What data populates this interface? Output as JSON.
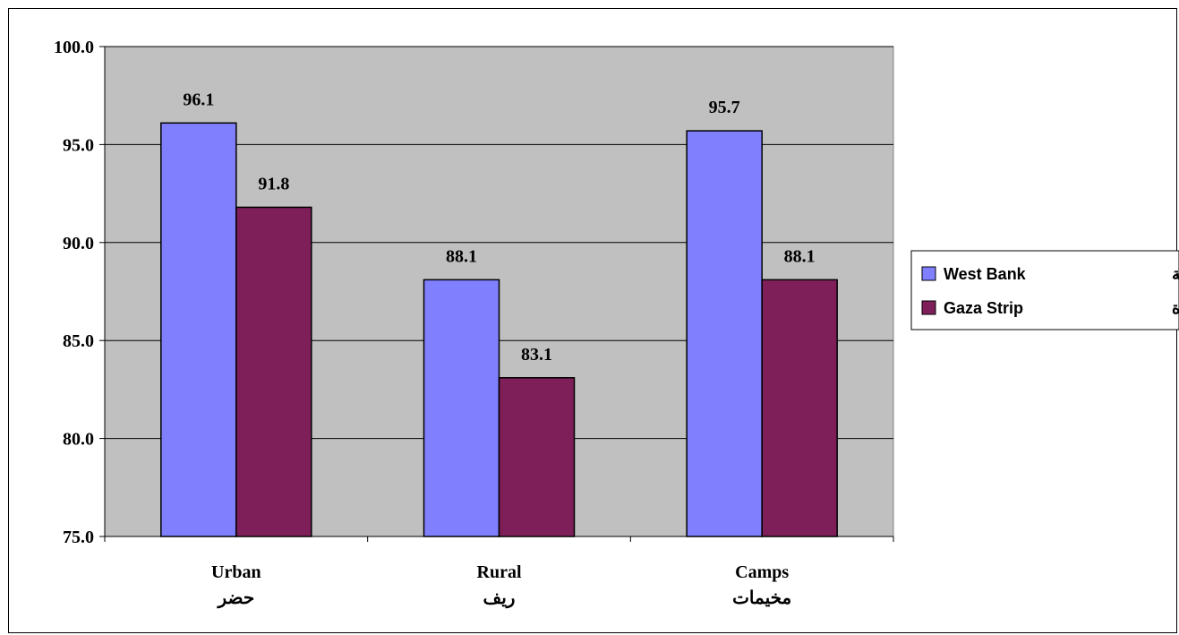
{
  "chart_data": {
    "type": "bar",
    "categories": [
      {
        "en": "Urban",
        "ar": "حضر"
      },
      {
        "en": "Rural",
        "ar": "ريف"
      },
      {
        "en": "Camps",
        "ar": "مخيمات"
      }
    ],
    "series": [
      {
        "name": "West Bank",
        "name_ar": "الضفة الغربية",
        "values": [
          96.1,
          88.1,
          95.7
        ],
        "color": "#8080FF"
      },
      {
        "name": "Gaza Strip",
        "name_ar": "قطاع غزة",
        "values": [
          91.8,
          83.1,
          88.1
        ],
        "color": "#7F1F5A"
      }
    ],
    "ylim": [
      75.0,
      100.0
    ],
    "yticks": [
      "75.0",
      "80.0",
      "85.0",
      "90.0",
      "95.0",
      "100.0"
    ],
    "data_labels": true,
    "grid": true,
    "legend_position": "right",
    "plot_background": "#C0C0C0"
  }
}
